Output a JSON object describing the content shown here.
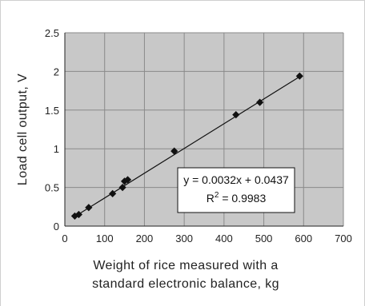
{
  "chart_data": {
    "type": "scatter",
    "title": "",
    "xlabel_lines": [
      "Weight of rice measured with a",
      "standard electronic balance, kg"
    ],
    "ylabel": "Load cell output, V",
    "xlim": [
      0,
      700
    ],
    "ylim": [
      0,
      2.5
    ],
    "x_ticks": [
      "0",
      "100",
      "200",
      "300",
      "400",
      "500",
      "600",
      "700"
    ],
    "y_ticks": [
      "0",
      "0.5",
      "1",
      "1.5",
      "2",
      "2.5"
    ],
    "grid": true,
    "legend": "none",
    "marker": "diamond",
    "colors": {
      "plot_background": "#c8c8c8",
      "grid": "#8a8a8a",
      "marker": "#111111",
      "trendline": "#111111"
    },
    "series": [
      {
        "points": [
          {
            "x": 25,
            "y": 0.13
          },
          {
            "x": 35,
            "y": 0.15
          },
          {
            "x": 60,
            "y": 0.24
          },
          {
            "x": 120,
            "y": 0.42
          },
          {
            "x": 145,
            "y": 0.5
          },
          {
            "x": 150,
            "y": 0.58
          },
          {
            "x": 158,
            "y": 0.6
          },
          {
            "x": 275,
            "y": 0.97
          },
          {
            "x": 430,
            "y": 1.44
          },
          {
            "x": 490,
            "y": 1.6
          },
          {
            "x": 590,
            "y": 1.94
          }
        ]
      }
    ],
    "trendline": {
      "slope": 0.0032,
      "intercept": 0.0437,
      "x_range": [
        22,
        592
      ]
    },
    "annotation": {
      "equation": "y = 0.0032x + 0.0437",
      "r2_prefix": "R",
      "r2_sup": "2",
      "r2_value": " = 0.9983"
    }
  }
}
